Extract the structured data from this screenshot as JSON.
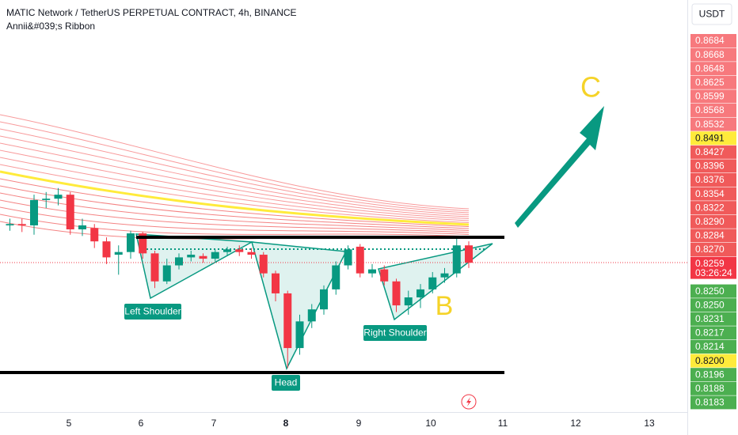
{
  "chart_data": {
    "type": "candlestick",
    "title": "MATIC Network / TetherUS PERPETUAL CONTRACT, 4h, BINANCE",
    "indicator": "Annii&#039;s Ribbon",
    "currency": "USDT",
    "ylim": [
      0.8147,
      0.8456
    ],
    "up_color": "#089981",
    "down_color": "#f23645",
    "open": [
      0.8287,
      0.8288,
      0.8287,
      0.8306,
      0.8307,
      0.831,
      0.8284,
      0.8285,
      0.8275,
      0.8265,
      0.8267,
      0.8281,
      0.8266,
      0.8245,
      0.8257,
      0.8263,
      0.8264,
      0.8262,
      0.8267,
      0.8269,
      0.8267,
      0.8265,
      0.8251,
      0.8236,
      0.8195,
      0.8215,
      0.8224,
      0.8239,
      0.8257,
      0.8271,
      0.8251,
      0.8254,
      0.8245,
      0.8227,
      0.8233,
      0.8239,
      0.8248,
      0.8251,
      0.8272
    ],
    "high": [
      0.8292,
      0.8292,
      0.831,
      0.8312,
      0.8315,
      0.8312,
      0.8292,
      0.8288,
      0.8278,
      0.8272,
      0.8283,
      0.8282,
      0.8268,
      0.8262,
      0.8266,
      0.8268,
      0.8266,
      0.8269,
      0.8271,
      0.8272,
      0.827,
      0.8267,
      0.8253,
      0.8238,
      0.822,
      0.8228,
      0.8242,
      0.826,
      0.8272,
      0.8273,
      0.8258,
      0.8257,
      0.8247,
      0.8238,
      0.8243,
      0.8252,
      0.8255,
      0.8279,
      0.8275
    ],
    "low": [
      0.8283,
      0.8282,
      0.828,
      0.83,
      0.8302,
      0.828,
      0.8279,
      0.827,
      0.8258,
      0.825,
      0.8262,
      0.8262,
      0.824,
      0.8243,
      0.8254,
      0.826,
      0.8259,
      0.826,
      0.8264,
      0.8264,
      0.8262,
      0.8248,
      0.823,
      0.818,
      0.819,
      0.821,
      0.822,
      0.8235,
      0.8254,
      0.8248,
      0.8248,
      0.8242,
      0.8222,
      0.822,
      0.8225,
      0.8236,
      0.8244,
      0.8248,
      0.8255
    ],
    "close": [
      0.8288,
      0.8287,
      0.8306,
      0.8307,
      0.831,
      0.8284,
      0.8287,
      0.8275,
      0.8263,
      0.8267,
      0.8281,
      0.8266,
      0.8245,
      0.8257,
      0.8263,
      0.8265,
      0.8262,
      0.8267,
      0.8269,
      0.8267,
      0.8265,
      0.8251,
      0.8236,
      0.8195,
      0.8215,
      0.8224,
      0.8239,
      0.8257,
      0.8269,
      0.8251,
      0.8254,
      0.8245,
      0.8227,
      0.8233,
      0.8239,
      0.8248,
      0.8251,
      0.8272,
      0.8259
    ],
    "time_labels": [
      "5",
      "6",
      "7",
      "8",
      "9",
      "10",
      "11",
      "12",
      "13"
    ],
    "annotations": [
      "Left Shoulder",
      "Head",
      "Right Shoulder",
      "B",
      "C"
    ],
    "yaxis_labels": [
      {
        "value": 0.8684,
        "label": "0.8684",
        "color": "#f7797d"
      },
      {
        "value": 0.8668,
        "label": "0.8668",
        "color": "#f7797d"
      },
      {
        "value": 0.8648,
        "label": "0.8648",
        "color": "#f7797d"
      },
      {
        "value": 0.8625,
        "label": "0.8625",
        "color": "#f7797d"
      },
      {
        "value": 0.8599,
        "label": "0.8599",
        "color": "#f7797d"
      },
      {
        "value": 0.8568,
        "label": "0.8568",
        "color": "#f7797d"
      },
      {
        "value": 0.8532,
        "label": "0.8532",
        "color": "#f7797d"
      },
      {
        "value": 0.8491,
        "label": "0.8491",
        "color": "#ffeb3b"
      },
      {
        "value": 0.8427,
        "label": "0.8427",
        "color": "#f05a5a"
      },
      {
        "value": 0.8396,
        "label": "0.8396",
        "color": "#f05a5a"
      },
      {
        "value": 0.8376,
        "label": "0.8376",
        "color": "#f05a5a"
      },
      {
        "value": 0.8354,
        "label": "0.8354",
        "color": "#f05a5a"
      },
      {
        "value": 0.8322,
        "label": "0.8322",
        "color": "#f05a5a"
      },
      {
        "value": 0.829,
        "label": "0.8290",
        "color": "#f05a5a"
      },
      {
        "value": 0.8284,
        "label": "0.8284",
        "color": "#f05a5a"
      },
      {
        "value": 0.827,
        "label": "0.8270",
        "color": "#f05a5a"
      },
      {
        "value": 0.8259,
        "label": "0.8259",
        "color": "#f23645"
      },
      {
        "value": 0.825,
        "label": "0.8250",
        "color": "#4caf50"
      },
      {
        "value": 0.825,
        "label": "0.8250",
        "color": "#4caf50"
      },
      {
        "value": 0.8231,
        "label": "0.8231",
        "color": "#4caf50"
      },
      {
        "value": 0.8217,
        "label": "0.8217",
        "color": "#4caf50"
      },
      {
        "value": 0.8214,
        "label": "0.8214",
        "color": "#4caf50"
      },
      {
        "value": 0.82,
        "label": "0.8200",
        "color": "#ffeb3b"
      },
      {
        "value": 0.8196,
        "label": "0.8196",
        "color": "#4caf50"
      },
      {
        "value": 0.8188,
        "label": "0.8188",
        "color": "#4caf50"
      },
      {
        "value": 0.8183,
        "label": "0.8183",
        "color": "#4caf50"
      }
    ],
    "countdown": "03:26:24"
  }
}
